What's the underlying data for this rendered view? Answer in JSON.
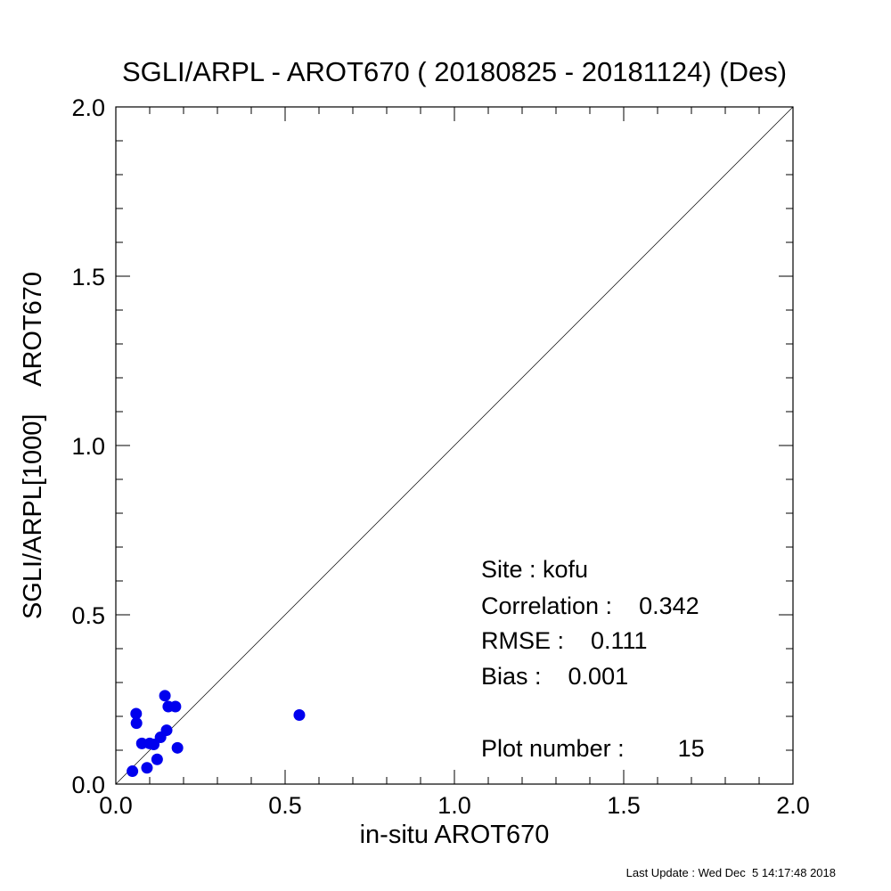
{
  "chart_data": {
    "type": "scatter",
    "title": "SGLI/ARPL - AROT670 ( 20180825 - 20181124) (Des)",
    "xlabel": "in-situ AROT670",
    "ylabel": "SGLI/ARPL[1000]    AROT670",
    "xlim": [
      0.0,
      2.0
    ],
    "ylim": [
      0.0,
      2.0
    ],
    "major_ticks": [
      0.0,
      0.5,
      1.0,
      1.5,
      2.0
    ],
    "tick_labels": [
      "0.0",
      "0.5",
      "1.0",
      "1.5",
      "2.0"
    ],
    "minor_tick_step": 0.1,
    "grid": false,
    "reference_line": "1:1",
    "point_color": "#0000ee",
    "points": [
      {
        "x": 0.049,
        "y": 0.038
      },
      {
        "x": 0.06,
        "y": 0.208
      },
      {
        "x": 0.061,
        "y": 0.18
      },
      {
        "x": 0.077,
        "y": 0.12
      },
      {
        "x": 0.092,
        "y": 0.048
      },
      {
        "x": 0.1,
        "y": 0.12
      },
      {
        "x": 0.112,
        "y": 0.117
      },
      {
        "x": 0.122,
        "y": 0.073
      },
      {
        "x": 0.132,
        "y": 0.138
      },
      {
        "x": 0.145,
        "y": 0.261
      },
      {
        "x": 0.15,
        "y": 0.159
      },
      {
        "x": 0.155,
        "y": 0.229
      },
      {
        "x": 0.176,
        "y": 0.229
      },
      {
        "x": 0.182,
        "y": 0.107
      },
      {
        "x": 0.542,
        "y": 0.204
      }
    ],
    "annotations": {
      "site": "Site : kofu",
      "correlation": "Correlation :    0.342",
      "rmse": "RMSE :    0.111",
      "bias": "Bias :    0.001",
      "plot_number": "Plot number :        15"
    }
  },
  "footer": {
    "last_update": "Last Update : Wed Dec  5 14:17:48 2018"
  }
}
